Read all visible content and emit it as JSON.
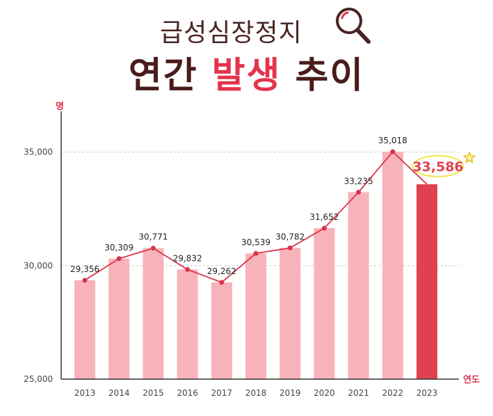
{
  "header": {
    "subtitle": "급성심장정지",
    "title_part1": "연간",
    "title_part2": "발생",
    "title_part3": "추이"
  },
  "icons": {
    "search": "search-icon",
    "star": "star-icon"
  },
  "colors": {
    "bar": "#f8b3ba",
    "bar_highlight": "#e0414f",
    "line": "#d9344a",
    "title": "#4a1c1c",
    "accent": "#e5334b"
  },
  "chart_data": {
    "type": "bar",
    "categories": [
      "2013",
      "2014",
      "2015",
      "2016",
      "2017",
      "2018",
      "2019",
      "2020",
      "2021",
      "2022",
      "2023"
    ],
    "values": [
      29356,
      30309,
      30771,
      29832,
      29262,
      30539,
      30782,
      31652,
      33235,
      35018,
      33586
    ],
    "value_labels": [
      "29,356",
      "30,309",
      "30,771",
      "29,832",
      "29,262",
      "30,539",
      "30,782",
      "31,652",
      "33,235",
      "35,018",
      "33,586"
    ],
    "highlight_index": 10,
    "line_overlay": true,
    "y_unit": "명",
    "x_unit": "연도",
    "y_ticks": [
      25000,
      30000,
      35000
    ],
    "y_tick_labels": [
      "25,000",
      "30,000",
      "35,000"
    ],
    "ylim": [
      25000,
      36800
    ],
    "grid": "dotted at 30,000 and 35,000"
  }
}
